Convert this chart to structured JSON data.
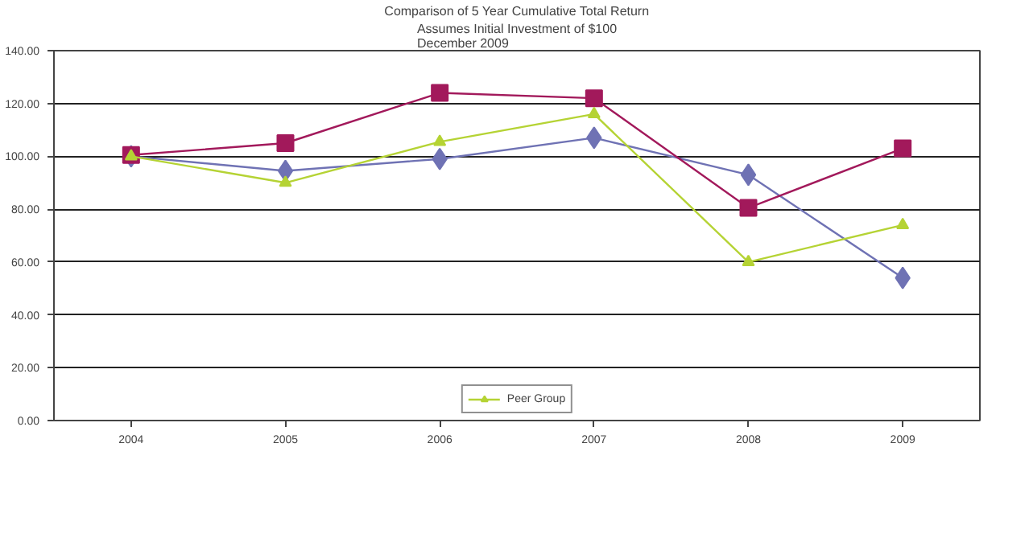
{
  "chart_data": {
    "type": "line",
    "title": "Comparison of 5 Year Cumulative Total Return",
    "subtitle": "Assumes Initial Investment of $100\nDecember 2009",
    "categories": [
      "2004",
      "2005",
      "2006",
      "2007",
      "2008",
      "2009"
    ],
    "series": [
      {
        "color": "#6f72b4",
        "marker": "diamond",
        "values": [
          100,
          94.5,
          99,
          107,
          93,
          54
        ]
      },
      {
        "color": "#a2195b",
        "marker": "square",
        "values": [
          100.5,
          105,
          124,
          122,
          80.5,
          103
        ]
      },
      {
        "name": "Peer Group",
        "color": "#b5d334",
        "marker": "triangle",
        "values": [
          100,
          90,
          105.5,
          116,
          60,
          74
        ]
      }
    ],
    "ylim": [
      0,
      140
    ],
    "yticks": [
      {
        "value": 0,
        "label": "0.00"
      },
      {
        "value": 20,
        "label": "20.00"
      },
      {
        "value": 40,
        "label": "40.00"
      },
      {
        "value": 60,
        "label": "60.00"
      },
      {
        "value": 80,
        "label": "80.00"
      },
      {
        "value": 100,
        "label": "100.00"
      },
      {
        "value": 120,
        "label": "120.00"
      },
      {
        "value": 140,
        "label": "140.00"
      }
    ],
    "grid": "y",
    "legend": "bottom"
  }
}
